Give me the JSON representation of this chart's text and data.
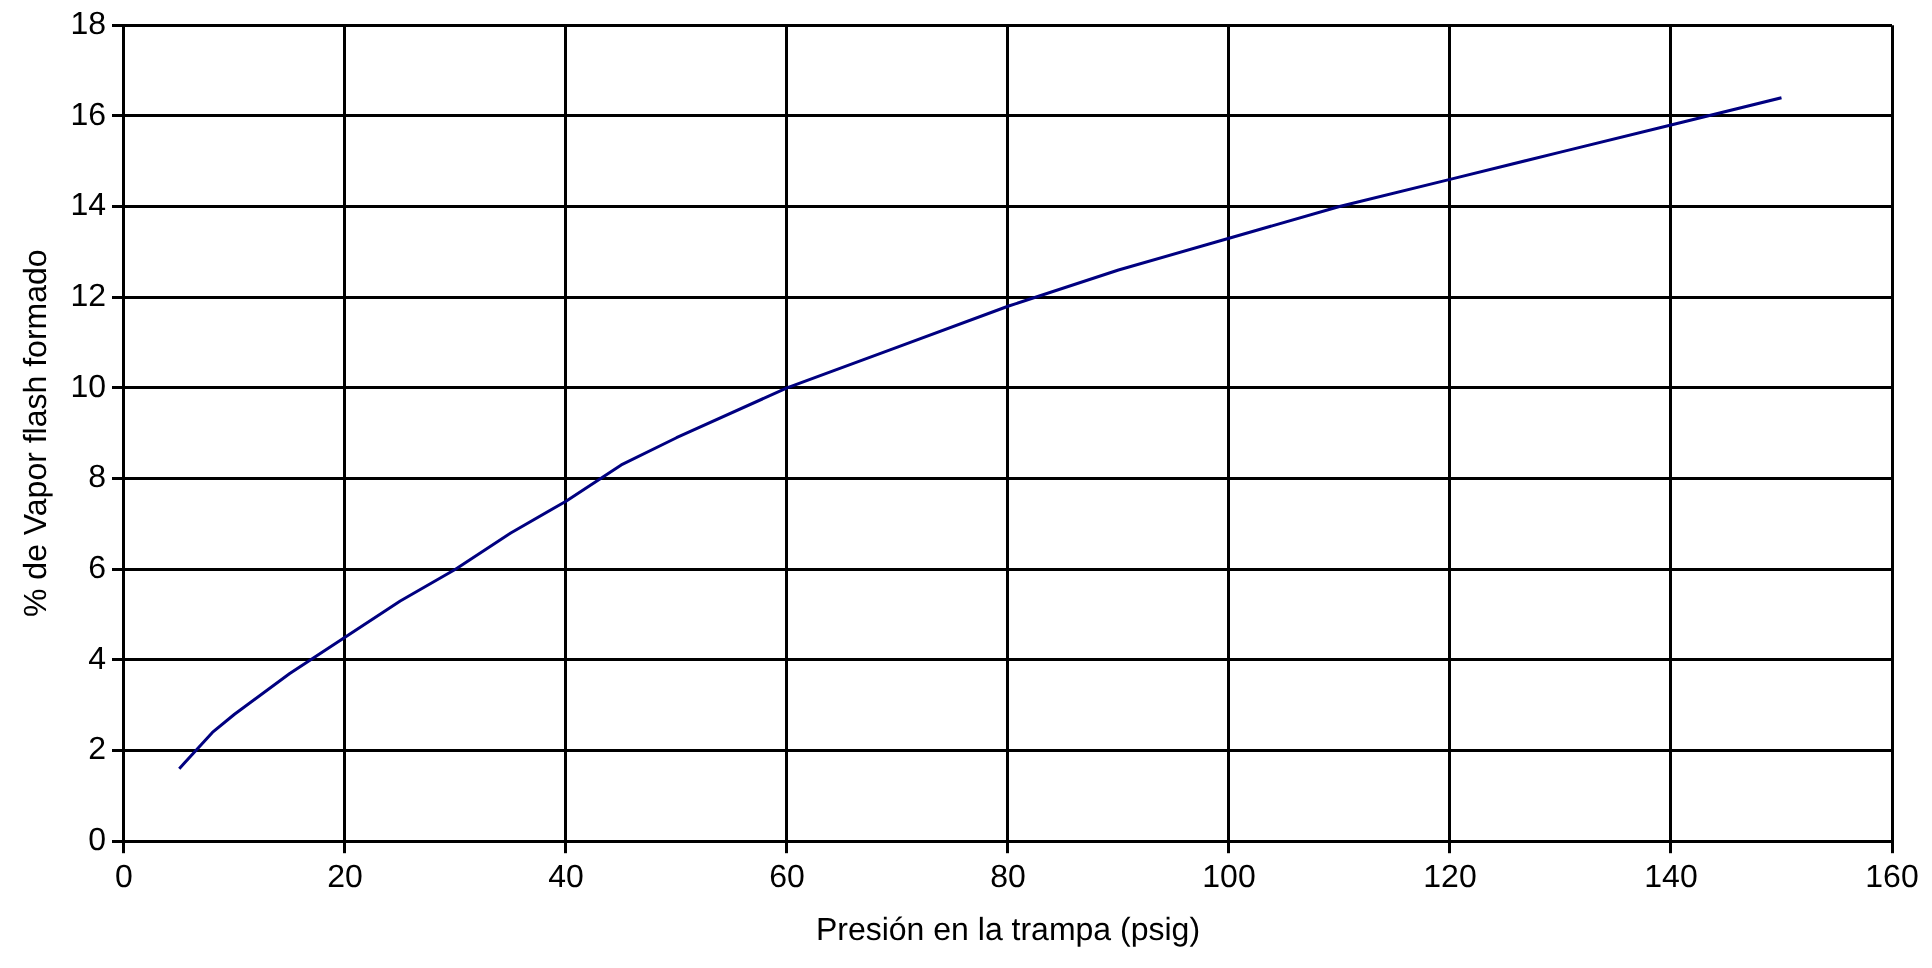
{
  "chart_data": {
    "type": "line",
    "xlabel": "Presión en la trampa (psig)",
    "ylabel": "% de Vapor flash formado",
    "x": [
      5,
      8,
      10,
      15,
      20,
      25,
      30,
      35,
      40,
      45,
      50,
      60,
      70,
      80,
      90,
      100,
      110,
      120,
      130,
      140,
      150
    ],
    "series": [
      {
        "color": "#000080",
        "values": [
          1.6,
          2.4,
          2.8,
          3.7,
          4.5,
          5.3,
          6.0,
          6.8,
          7.5,
          8.3,
          8.9,
          10.0,
          10.9,
          11.8,
          12.6,
          13.3,
          14.0,
          14.6,
          15.2,
          15.8,
          16.4
        ]
      }
    ],
    "xlim": [
      0,
      160
    ],
    "xticks": [
      0,
      20,
      40,
      60,
      80,
      100,
      120,
      140,
      160
    ],
    "ylim": [
      0,
      18
    ],
    "yticks": [
      0,
      2,
      4,
      6,
      8,
      10,
      12,
      14,
      16,
      18
    ],
    "grid": true,
    "legend": false,
    "marker": "none",
    "line_style": "solid"
  }
}
